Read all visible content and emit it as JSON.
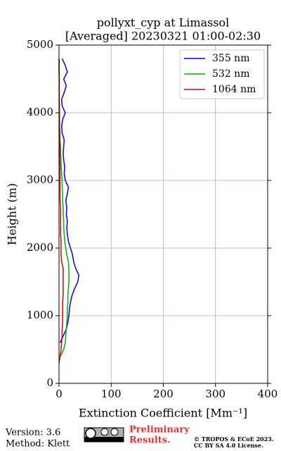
{
  "chart_data": {
    "type": "line",
    "orientation": "vertical-profile",
    "title": "pollyxt_cyp at Limassol",
    "subtitle": "[Averaged] 20230321 01:00-02:30",
    "xlabel": "Extinction Coefficient [Mm⁻¹]",
    "ylabel": "Height (m)",
    "y": [
      0,
      100,
      200,
      300,
      400,
      500,
      600,
      700,
      800,
      900,
      1000,
      1100,
      1200,
      1300,
      1400,
      1500,
      1600,
      1700,
      1800,
      1900,
      2000,
      2100,
      2200,
      2300,
      2400,
      2500,
      2600,
      2700,
      2800,
      2900,
      3000,
      3100,
      3200,
      3300,
      3400,
      3500,
      3600,
      3700,
      3800,
      3900,
      4000,
      4100,
      4200,
      4300,
      4400,
      4500,
      4600,
      4700,
      4800
    ],
    "series": [
      {
        "name": "355 nm",
        "color": "#0000ff",
        "values": [
          null,
          null,
          null,
          null,
          null,
          null,
          2,
          8,
          14,
          17,
          19,
          20,
          22,
          25,
          30,
          36,
          38,
          32,
          28,
          26,
          22,
          18,
          16,
          15,
          16,
          14,
          15,
          13,
          16,
          18,
          12,
          10,
          11,
          9,
          8,
          9,
          10,
          6,
          5,
          7,
          12,
          6,
          5,
          10,
          14,
          9,
          16,
          12,
          6
        ]
      },
      {
        "name": "532 nm",
        "color": "#00b400",
        "values": [
          null,
          null,
          null,
          null,
          3,
          9,
          12,
          13,
          14,
          15,
          16,
          16,
          17,
          17,
          18,
          19,
          19,
          19,
          18,
          15,
          13,
          11,
          10,
          9,
          9,
          8,
          8,
          7,
          7,
          6,
          6,
          5,
          4,
          4,
          3,
          3,
          2,
          2,
          1,
          1,
          1,
          1,
          0.5,
          0.5,
          0.5,
          0.5,
          0.5,
          0.5,
          0.5
        ]
      },
      {
        "name": "1064 nm",
        "color": "#e00000",
        "values": [
          null,
          null,
          null,
          0,
          2,
          4,
          5,
          6,
          6,
          7,
          7,
          7,
          7,
          8,
          8,
          8,
          8,
          8,
          5,
          4,
          4,
          4,
          3,
          3,
          3,
          3,
          3,
          2,
          2,
          2,
          2,
          2,
          2,
          1.5,
          1.5,
          1.5,
          1,
          1,
          1,
          1,
          0.5,
          0.5,
          0.5,
          0.5,
          0.5,
          0.5,
          0,
          0,
          0
        ]
      }
    ],
    "xlim": [
      0,
      400
    ],
    "xticks": [
      0,
      100,
      200,
      300,
      400
    ],
    "ylim": [
      0,
      5000
    ],
    "yticks": [
      0,
      1000,
      2000,
      3000,
      4000,
      5000
    ],
    "grid": true,
    "legend": "upper right"
  },
  "footer": {
    "version": "Version: 3.6",
    "method": "Method: Klett",
    "notice": [
      "Preliminary",
      "Results."
    ],
    "copyright": [
      "© TROPOS & ECoE 2023.",
      "CC BY SA 4.0 License."
    ]
  }
}
